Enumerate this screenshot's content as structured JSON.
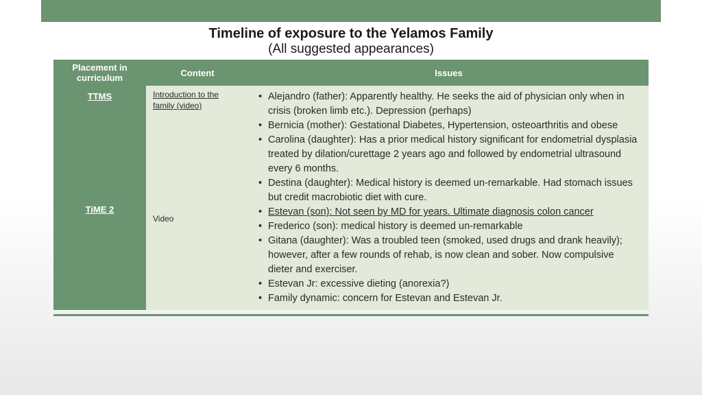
{
  "colors": {
    "green": "#6b9471",
    "cell_bg": "#e3ead9",
    "page_grad_top": "#ffffff",
    "page_grad_bottom": "#e8e8e8"
  },
  "title": {
    "main": "Timeline of exposure to the Yelamos Family",
    "sub": "(All suggested appearances)"
  },
  "table": {
    "headers": {
      "placement": "Placement in curriculum",
      "content": "Content",
      "issues": "Issues"
    },
    "row": {
      "placement": {
        "p1": "TTMS",
        "p2": "TiME 2"
      },
      "content": {
        "c1": "Introduction to the family (video)",
        "c2": "Video"
      },
      "issues": [
        {
          "text": "Alejandro (father): Apparently healthy. He seeks the aid of physician only when in crisis (broken limb etc.). Depression (perhaps)",
          "underline": false
        },
        {
          "text": "Bernicia (mother): Gestational Diabetes, Hypertension, osteoarthritis and obese",
          "underline": false
        },
        {
          "text": "Carolina (daughter): Has a prior medical history significant for endometrial dysplasia treated by dilation/curettage 2 years ago and followed by endometrial ultrasound every 6 months.",
          "underline": false
        },
        {
          "text": "Destina (daughter): Medical history is deemed un-remarkable. Had stomach issues but credit macrobiotic diet with cure.",
          "underline": false
        },
        {
          "text": "Estevan (son): Not seen by MD for years. Ultimate diagnosis colon cancer",
          "underline": true
        },
        {
          "text": "Frederico (son): medical history is deemed un-remarkable",
          "underline": false
        },
        {
          "text": "Gitana (daughter): Was a troubled teen (smoked, used drugs and drank heavily); however, after a few rounds of rehab, is now clean and sober. Now compulsive dieter and exerciser.",
          "underline": false
        },
        {
          "text": "Estevan Jr: excessive dieting (anorexia?)",
          "underline": false
        },
        {
          "text": "Family dynamic: concern for Estevan and Estevan Jr.",
          "underline": false
        }
      ]
    }
  }
}
